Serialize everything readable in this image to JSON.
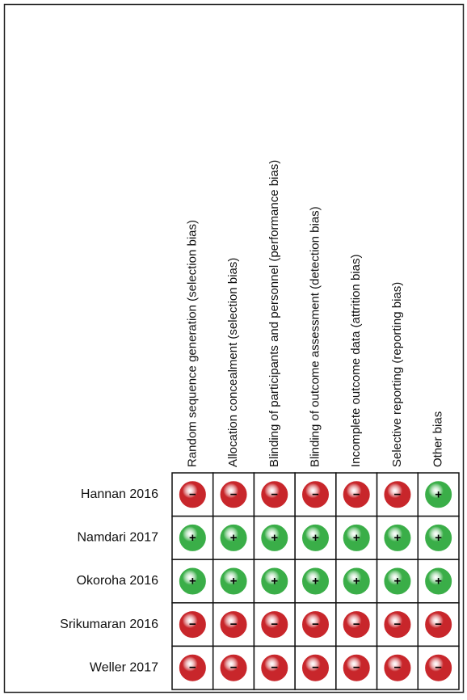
{
  "columns": [
    "Random sequence generation (selection bias)",
    "Allocation concealment (selection bias)",
    "Blinding of participants and personnel (performance bias)",
    "Blinding of outcome assessment (detection bias)",
    "Incomplete outcome data (attrition bias)",
    "Selective reporting (reporting bias)",
    "Other bias"
  ],
  "rows": [
    {
      "study": "Hannan 2016",
      "judgments": [
        "−",
        "−",
        "−",
        "−",
        "−",
        "−",
        "+"
      ]
    },
    {
      "study": "Namdari 2017",
      "judgments": [
        "+",
        "+",
        "+",
        "+",
        "+",
        "+",
        "+"
      ]
    },
    {
      "study": "Okoroha 2016",
      "judgments": [
        "+",
        "+",
        "+",
        "+",
        "+",
        "+",
        "+"
      ]
    },
    {
      "study": "Srikumaran 2016",
      "judgments": [
        "−",
        "−",
        "−",
        "−",
        "−",
        "−",
        "−"
      ]
    },
    {
      "study": "Weller 2017",
      "judgments": [
        "−",
        "−",
        "−",
        "−",
        "−",
        "−",
        "−"
      ]
    }
  ],
  "colors": {
    "+": "#3aae48",
    "−": "#c8262b"
  }
}
